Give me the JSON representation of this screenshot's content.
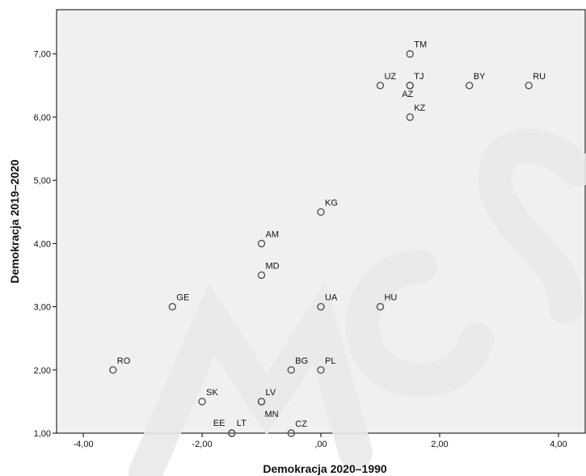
{
  "chart_data": {
    "type": "scatter",
    "title": "",
    "xlabel": "Demokracja 2020–1990",
    "ylabel": "Demokracja 2019–2020",
    "xlim": [
      -4.45,
      4.45
    ],
    "ylim": [
      1.0,
      7.7
    ],
    "xticks": [
      -4,
      -2,
      0,
      2,
      4
    ],
    "xtick_labels": [
      "-4,00",
      "-2,00",
      ",00",
      "2,00",
      "4,00"
    ],
    "yticks": [
      1,
      2,
      3,
      4,
      5,
      6,
      7
    ],
    "ytick_labels": [
      "1,00",
      "2,00",
      "3,00",
      "4,00",
      "5,00",
      "6,00",
      "7,00"
    ],
    "grid": false,
    "marker_color": "#555555",
    "background_color": "#f0f0f0",
    "points": [
      {
        "label": "TM",
        "x": 1.5,
        "y": 7.0
      },
      {
        "label": "UZ",
        "x": 1.0,
        "y": 6.5
      },
      {
        "label": "TJ",
        "x": 1.5,
        "y": 6.5
      },
      {
        "label": "AZ",
        "x": 1.5,
        "y": 6.5
      },
      {
        "label": "BY",
        "x": 2.5,
        "y": 6.5
      },
      {
        "label": "RU",
        "x": 3.5,
        "y": 6.5
      },
      {
        "label": "KZ",
        "x": 1.5,
        "y": 6.0
      },
      {
        "label": "KG",
        "x": 0.0,
        "y": 4.5
      },
      {
        "label": "AM",
        "x": -1.0,
        "y": 4.0
      },
      {
        "label": "MD",
        "x": -1.0,
        "y": 3.5
      },
      {
        "label": "GE",
        "x": -2.5,
        "y": 3.0
      },
      {
        "label": "UA",
        "x": 0.0,
        "y": 3.0
      },
      {
        "label": "HU",
        "x": 1.0,
        "y": 3.0
      },
      {
        "label": "RO",
        "x": -3.5,
        "y": 2.0
      },
      {
        "label": "BG",
        "x": -0.5,
        "y": 2.0
      },
      {
        "label": "PL",
        "x": 0.0,
        "y": 2.0
      },
      {
        "label": "SK",
        "x": -2.0,
        "y": 1.5
      },
      {
        "label": "LV",
        "x": -1.0,
        "y": 1.5
      },
      {
        "label": "MN",
        "x": -1.0,
        "y": 1.5
      },
      {
        "label": "EE",
        "x": -1.5,
        "y": 1.0
      },
      {
        "label": "LT",
        "x": -1.5,
        "y": 1.0
      },
      {
        "label": "CZ",
        "x": -0.5,
        "y": 1.0
      }
    ]
  }
}
